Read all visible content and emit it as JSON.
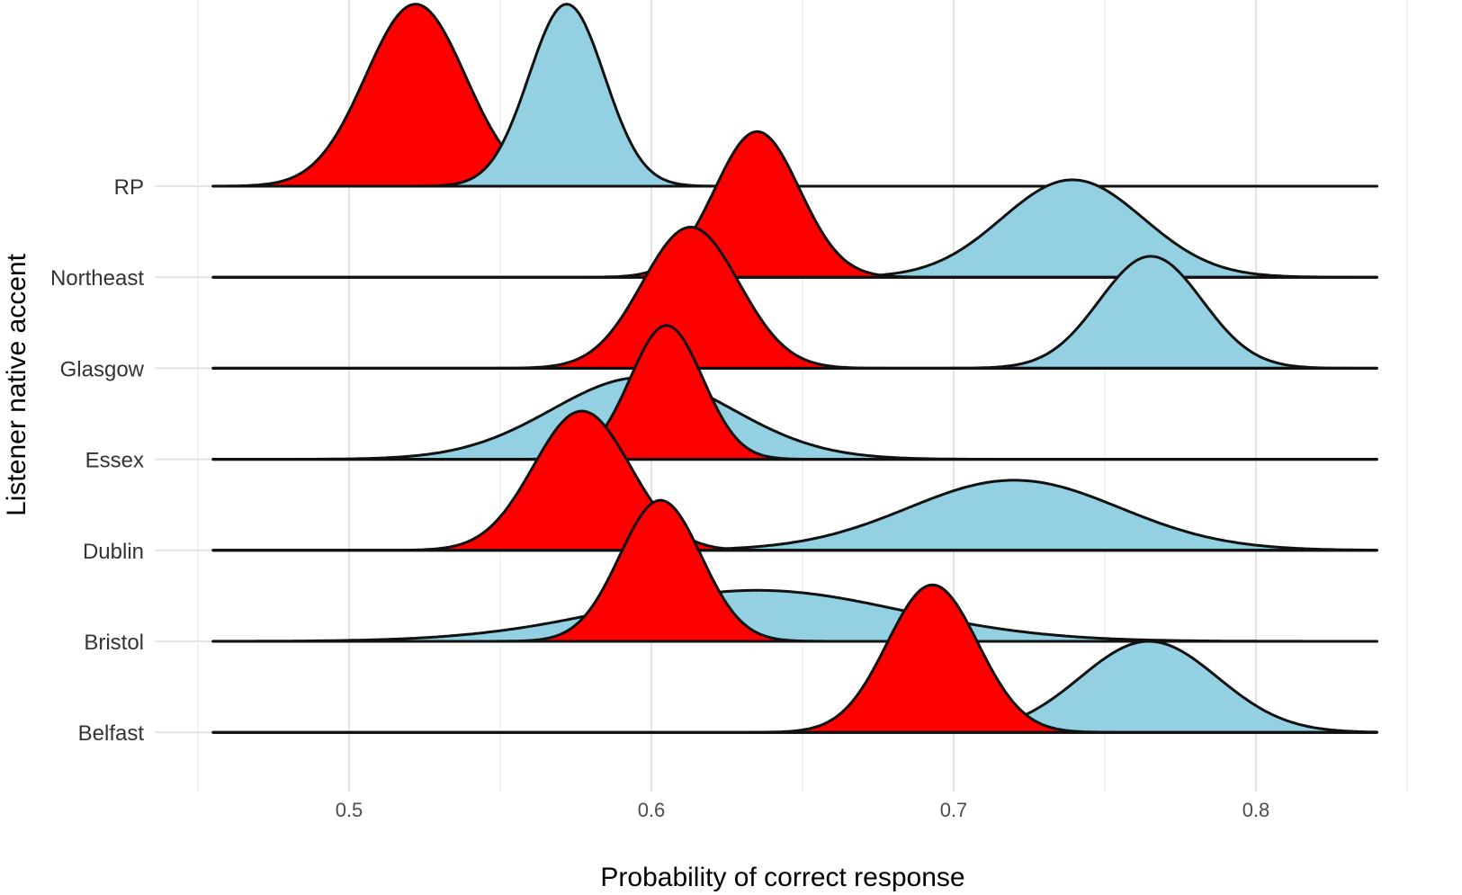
{
  "chart_data": {
    "type": "ridgeline",
    "xlabel": "Probability of correct response",
    "ylabel": "Listener native accent",
    "x_ticks": [
      0.5,
      0.6,
      0.7,
      0.8
    ],
    "x_tick_labels": [
      "0.5",
      "0.6",
      "0.7",
      "0.8"
    ],
    "xlim": [
      0.45,
      0.85
    ],
    "grid": true,
    "colors": {
      "red_series": "#ff0000",
      "blue_series": "#92d0e2",
      "outline": "#111111"
    },
    "categories": [
      "RP",
      "Northeast",
      "Glasgow",
      "Essex",
      "Dublin",
      "Bristol",
      "Belfast"
    ],
    "ridges": [
      {
        "category": "RP",
        "red": {
          "mean": 0.522,
          "sd": 0.0165,
          "height": 2.0,
          "peaks": [
            [
              0,
              0.522,
              1
            ]
          ]
        },
        "blue": {
          "mean": 0.572,
          "sd": 0.0125,
          "height": 2.0,
          "peaks": [
            [
              0,
              0.572,
              1
            ]
          ]
        }
      },
      {
        "category": "Northeast",
        "red": {
          "mean": 0.635,
          "sd": 0.014,
          "height": 1.6,
          "peaks": [
            [
              0,
              0.635,
              1
            ]
          ]
        },
        "blue": {
          "mean": 0.74,
          "sd": 0.022,
          "height": 1.07,
          "peaks": [
            [
              0,
              0.733,
              0.6
            ],
            [
              0,
              0.748,
              0.45
            ]
          ]
        }
      },
      {
        "category": "Glasgow",
        "red": {
          "mean": 0.613,
          "sd": 0.016,
          "height": 1.55,
          "peaks": [
            [
              0,
              0.613,
              1
            ]
          ]
        },
        "blue": {
          "mean": 0.765,
          "sd": 0.016,
          "height": 1.23,
          "peaks": [
            [
              0,
              0.76,
              0.55
            ],
            [
              0,
              0.771,
              0.5
            ]
          ]
        }
      },
      {
        "category": "Essex",
        "red": {
          "mean": 0.605,
          "sd": 0.012,
          "height": 1.47,
          "peaks": [
            [
              0,
              0.605,
              1
            ]
          ]
        },
        "blue": {
          "mean": 0.597,
          "sd": 0.03,
          "height": 0.9,
          "peaks": [
            [
              0,
              0.597,
              1
            ]
          ]
        }
      },
      {
        "category": "Dublin",
        "red": {
          "mean": 0.577,
          "sd": 0.016,
          "height": 1.53,
          "peaks": [
            [
              0,
              0.577,
              1
            ]
          ]
        },
        "blue": {
          "mean": 0.72,
          "sd": 0.035,
          "height": 0.77,
          "peaks": [
            [
              0,
              0.72,
              1
            ]
          ]
        }
      },
      {
        "category": "Bristol",
        "red": {
          "mean": 0.603,
          "sd": 0.0135,
          "height": 1.55,
          "peaks": [
            [
              0,
              0.603,
              1
            ]
          ]
        },
        "blue": {
          "mean": 0.635,
          "sd": 0.048,
          "height": 0.56,
          "peaks": [
            [
              0,
              0.635,
              1
            ]
          ]
        }
      },
      {
        "category": "Belfast",
        "red": {
          "mean": 0.693,
          "sd": 0.015,
          "height": 1.62,
          "peaks": [
            [
              0,
              0.693,
              1
            ]
          ]
        },
        "blue": {
          "mean": 0.762,
          "sd": 0.021,
          "height": 1.0,
          "peaks": [
            [
              0,
              0.757,
              0.55
            ],
            [
              0,
              0.773,
              0.5
            ]
          ]
        }
      }
    ]
  }
}
